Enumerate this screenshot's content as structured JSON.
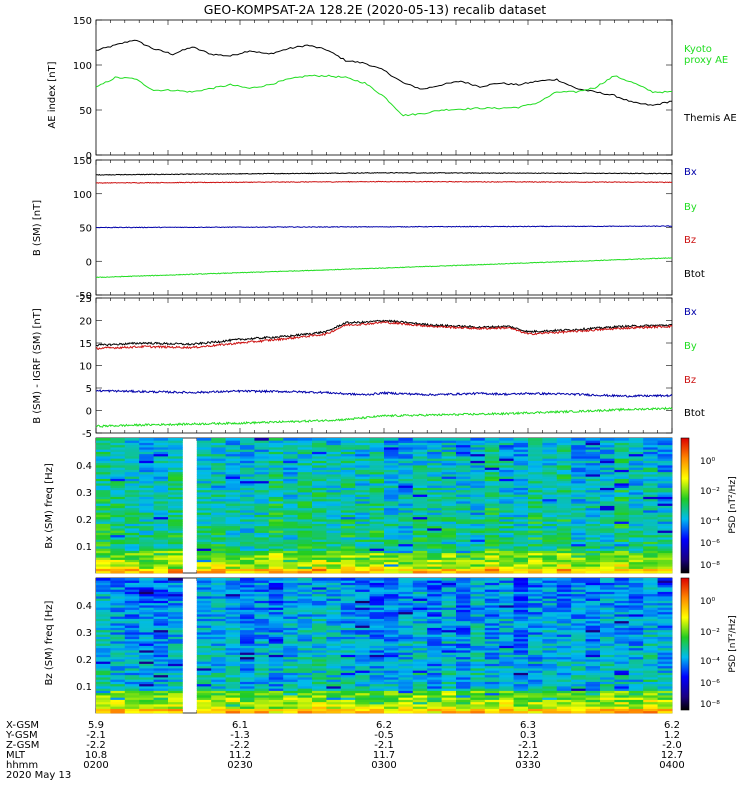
{
  "figure": {
    "title": "GEO-KOMPSAT-2A 128.2E (2020-05-13) recalib dataset"
  },
  "colors": {
    "black": "#000000",
    "green": "#22cc22",
    "red": "#cc1111",
    "blue": "#0000aa",
    "legend_green": "#22dd22"
  },
  "chart_data": [
    {
      "type": "line",
      "panel": "ae",
      "ylabel": "AE index [nT]",
      "ylim": [
        0,
        150
      ],
      "yticks": [
        "0",
        "50",
        "100",
        "150"
      ],
      "xlim": [
        0,
        120
      ],
      "series": [
        {
          "name": "Themis AE",
          "color": "black",
          "x": [
            0,
            4,
            8,
            12,
            16,
            20,
            24,
            28,
            32,
            36,
            40,
            44,
            48,
            52,
            56,
            60,
            64,
            68,
            72,
            76,
            80,
            84,
            88,
            92,
            96,
            100,
            104,
            108,
            112,
            116,
            120
          ],
          "y": [
            116,
            122,
            128,
            118,
            112,
            120,
            112,
            110,
            116,
            112,
            118,
            122,
            117,
            105,
            102,
            94,
            80,
            73,
            78,
            82,
            76,
            80,
            78,
            82,
            84,
            74,
            70,
            66,
            58,
            55,
            60
          ]
        },
        {
          "name": "Kyoto proxy AE",
          "color": "green",
          "x": [
            0,
            4,
            8,
            12,
            16,
            20,
            24,
            28,
            32,
            36,
            40,
            44,
            48,
            52,
            56,
            60,
            64,
            68,
            72,
            76,
            80,
            84,
            88,
            92,
            96,
            100,
            104,
            108,
            112,
            116,
            120
          ],
          "y": [
            75,
            86,
            85,
            72,
            72,
            70,
            74,
            78,
            74,
            78,
            84,
            88,
            88,
            86,
            80,
            65,
            44,
            46,
            50,
            51,
            52,
            52,
            53,
            58,
            70,
            70,
            75,
            88,
            80,
            70,
            70
          ]
        }
      ]
    },
    {
      "type": "line",
      "panel": "bsm",
      "ylabel": "B (SM) [nT]",
      "ylim": [
        -50,
        150
      ],
      "yticks": [
        "-50",
        "0",
        "50",
        "100",
        "150"
      ],
      "xlim": [
        0,
        120
      ],
      "series": [
        {
          "name": "Btot",
          "color": "black",
          "x": [
            0,
            60,
            120
          ],
          "y": [
            128,
            131,
            130
          ]
        },
        {
          "name": "Bz",
          "color": "red",
          "x": [
            0,
            60,
            120
          ],
          "y": [
            116,
            118,
            117
          ]
        },
        {
          "name": "Bx",
          "color": "blue",
          "x": [
            0,
            60,
            120
          ],
          "y": [
            50,
            51,
            52
          ]
        },
        {
          "name": "By",
          "color": "green",
          "x": [
            0,
            60,
            120
          ],
          "y": [
            -24,
            -10,
            5
          ]
        }
      ]
    },
    {
      "type": "line",
      "panel": "bigrf",
      "ylabel": "B (SM) - IGRF (SM) [nT]",
      "ylim": [
        -5,
        25
      ],
      "yticks": [
        "-5",
        "0",
        "5",
        "10",
        "15",
        "20",
        "25"
      ],
      "xlim": [
        0,
        120
      ],
      "series": [
        {
          "name": "Btot",
          "color": "black",
          "x": [
            0,
            10,
            20,
            30,
            40,
            48,
            52,
            56,
            60,
            70,
            80,
            86,
            90,
            100,
            110,
            120
          ],
          "y": [
            14.5,
            15.0,
            14.7,
            15.8,
            16.5,
            17.5,
            19.5,
            19.6,
            20.0,
            19.0,
            18.5,
            18.7,
            17.5,
            18.0,
            18.7,
            19.0
          ]
        },
        {
          "name": "Bz",
          "color": "red",
          "x": [
            0,
            10,
            20,
            30,
            40,
            48,
            52,
            56,
            60,
            70,
            80,
            86,
            90,
            100,
            110,
            120
          ],
          "y": [
            13.8,
            14.2,
            14.0,
            15.0,
            16.0,
            17.0,
            19.0,
            19.2,
            19.6,
            18.7,
            18.2,
            18.4,
            17.0,
            17.6,
            18.3,
            18.7
          ]
        },
        {
          "name": "Bx",
          "color": "blue",
          "x": [
            0,
            10,
            20,
            30,
            40,
            48,
            52,
            56,
            60,
            70,
            80,
            86,
            90,
            100,
            110,
            120
          ],
          "y": [
            4.4,
            4.2,
            4.0,
            4.3,
            4.2,
            4.0,
            3.7,
            3.5,
            3.9,
            3.5,
            3.8,
            3.6,
            3.8,
            3.6,
            3.2,
            3.3
          ]
        },
        {
          "name": "By",
          "color": "green",
          "x": [
            0,
            10,
            20,
            30,
            40,
            48,
            52,
            56,
            60,
            70,
            80,
            86,
            90,
            100,
            110,
            120
          ],
          "y": [
            -3.5,
            -3.2,
            -3.0,
            -2.8,
            -2.5,
            -2.2,
            -2.0,
            -1.6,
            -1.2,
            -1.0,
            -0.8,
            -0.7,
            -0.5,
            -0.2,
            0.2,
            0.5
          ]
        }
      ]
    },
    {
      "type": "heatmap",
      "panel": "bx",
      "ylabel": "Bx (SM) freq [Hz]",
      "ylim": [
        0,
        0.5
      ],
      "yticks": [
        "0.1",
        "0.2",
        "0.3",
        "0.4"
      ],
      "xlim": [
        0,
        120
      ],
      "data_gap": [
        18,
        22
      ],
      "colorbar": {
        "label": "PSD [nT²/Hz]",
        "range_log10": [
          -8,
          2
        ],
        "ticks": [
          "10⁰",
          "10⁻²",
          "10⁻⁴",
          "10⁻⁶",
          "10⁻⁸"
        ]
      }
    },
    {
      "type": "heatmap",
      "panel": "bz",
      "ylabel": "Bz (SM) freq [Hz]",
      "ylim": [
        0,
        0.5
      ],
      "yticks": [
        "0.1",
        "0.2",
        "0.3",
        "0.4"
      ],
      "xlim": [
        0,
        120
      ],
      "data_gap": [
        18,
        22
      ],
      "colorbar": {
        "label": "PSD [nT²/Hz]",
        "range_log10": [
          -8,
          2
        ],
        "ticks": [
          "10⁰",
          "10⁻²",
          "10⁻⁴",
          "10⁻⁶",
          "10⁻⁸"
        ]
      }
    }
  ],
  "legends": {
    "ae": [
      {
        "text": "Kyoto",
        "color": "green"
      },
      {
        "text": "proxy AE",
        "color": "green"
      },
      {
        "text": "Themis AE",
        "color": "black"
      }
    ],
    "b": [
      {
        "text": "Bx",
        "color": "blue"
      },
      {
        "text": "By",
        "color": "green"
      },
      {
        "text": "Bz",
        "color": "red"
      },
      {
        "text": "Btot",
        "color": "black"
      }
    ]
  },
  "ephemeris": {
    "row_labels": [
      "X-GSM",
      "Y-GSM",
      "Z-GSM",
      "MLT",
      "hhmm",
      "2020 May 13"
    ],
    "columns": [
      {
        "x_gsm": "5.9",
        "y_gsm": "-2.1",
        "z_gsm": "-2.2",
        "mlt": "10.8",
        "hhmm": "0200"
      },
      {
        "x_gsm": "6.1",
        "y_gsm": "-1.3",
        "z_gsm": "-2.2",
        "mlt": "11.2",
        "hhmm": "0230"
      },
      {
        "x_gsm": "6.2",
        "y_gsm": "-0.5",
        "z_gsm": "-2.1",
        "mlt": "11.7",
        "hhmm": "0300"
      },
      {
        "x_gsm": "6.3",
        "y_gsm": "0.3",
        "z_gsm": "-2.1",
        "mlt": "12.2",
        "hhmm": "0330"
      },
      {
        "x_gsm": "6.2",
        "y_gsm": "1.2",
        "z_gsm": "-2.0",
        "mlt": "12.7",
        "hhmm": "0400"
      }
    ]
  }
}
